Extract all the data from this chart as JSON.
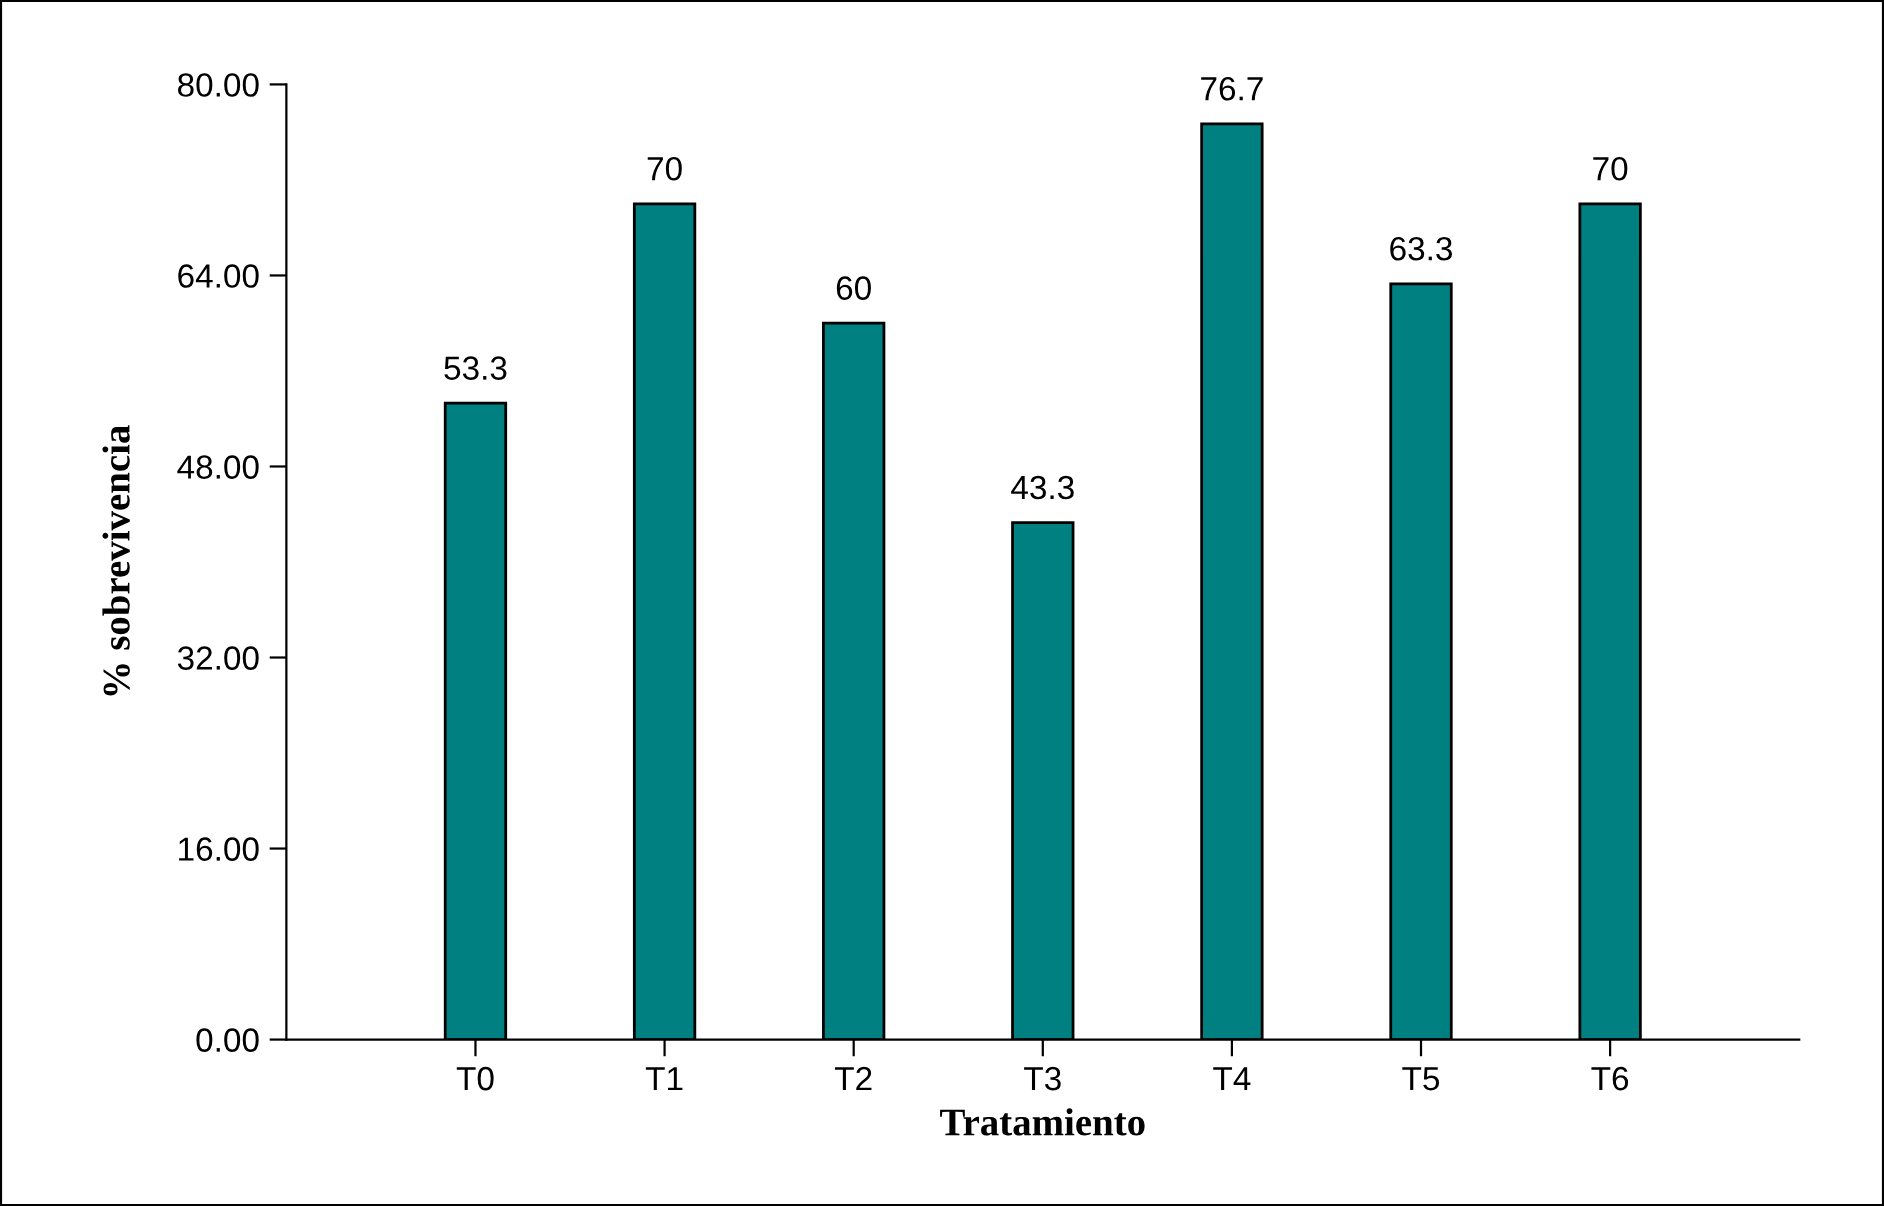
{
  "chart_data": {
    "type": "bar",
    "xlabel": "Tratamiento",
    "ylabel": "% sobrevivencia",
    "categories": [
      "T0",
      "T1",
      "T2",
      "T3",
      "T4",
      "T5",
      "T6"
    ],
    "values": [
      53.3,
      70,
      60,
      43.3,
      76.7,
      63.3,
      70
    ],
    "value_labels": [
      "53.3",
      "70",
      "60",
      "43.3",
      "76.7",
      "63.3",
      "70"
    ],
    "color": "#008080",
    "ylim": [
      0,
      80
    ],
    "yticks": [
      {
        "value": 0,
        "label": "0.00"
      },
      {
        "value": 16,
        "label": "16.00"
      },
      {
        "value": 32,
        "label": "32.00"
      },
      {
        "value": 48,
        "label": "48.00"
      },
      {
        "value": 64,
        "label": "64.00"
      },
      {
        "value": 80,
        "label": "80.00"
      }
    ],
    "grid": false,
    "legend": false
  }
}
